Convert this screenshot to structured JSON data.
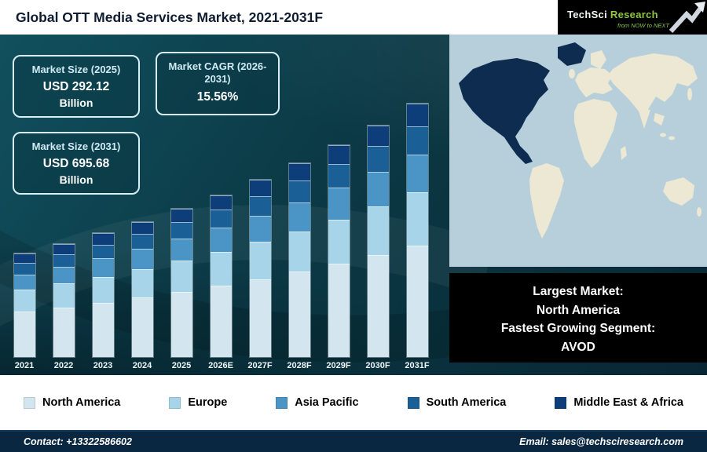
{
  "header": {
    "title": "Global OTT Media Services Market, 2021-2031F",
    "logo": {
      "brand_1": "TechSci",
      "brand_2": "Research",
      "tagline": "from NOW to NEXT"
    }
  },
  "info_boxes": [
    {
      "label": "Market Size (2025)",
      "value": "USD 292.12",
      "unit": "Billion"
    },
    {
      "label": "Market CAGR (2026-2031)",
      "value": "15.56%",
      "unit": ""
    },
    {
      "label": "Market Size (2031)",
      "value": "USD 695.68",
      "unit": "Billion"
    }
  ],
  "map_panel": {
    "highlighted_region": "North America",
    "sea_color": "#b7cedb",
    "land_color": "#ece8d3",
    "highlight_color": "#0d2c50"
  },
  "market_box": {
    "lines": [
      "Largest Market:",
      "North America",
      "Fastest Growing Segment:",
      "AVOD"
    ]
  },
  "legend": [
    {
      "label": "North America",
      "color": "#d3e6f0"
    },
    {
      "label": "Europe",
      "color": "#a8d4ea"
    },
    {
      "label": "Asia Pacific",
      "color": "#4b94c6"
    },
    {
      "label": "South America",
      "color": "#1b5f97"
    },
    {
      "label": "Middle East & Africa",
      "color": "#0d3e7a"
    }
  ],
  "footer": {
    "contact": "Contact: +13322586602",
    "email": "Email: sales@techsciresearch.com"
  },
  "chart_data": {
    "type": "bar",
    "stacked": true,
    "title": "Global OTT Media Services Market, 2021-2031F",
    "unit": "USD Billion",
    "categories": [
      "2021",
      "2022",
      "2023",
      "2024",
      "2025",
      "2026E",
      "2027F",
      "2028F",
      "2029F",
      "2030F",
      "2031F"
    ],
    "series": [
      {
        "name": "North America",
        "color": "#d3e6f0",
        "values": [
          72.1,
          83.3,
          96.3,
          111.2,
          128.5,
          148.5,
          171.6,
          198.4,
          229.2,
          264.9,
          306.1
        ]
      },
      {
        "name": "Europe",
        "color": "#a8d4ea",
        "values": [
          34.4,
          39.8,
          45.9,
          53.1,
          61.3,
          70.9,
          81.9,
          94.7,
          109.4,
          126.4,
          146.1
        ]
      },
      {
        "name": "Asia Pacific",
        "color": "#4b94c6",
        "values": [
          24.6,
          28.4,
          32.8,
          37.9,
          43.8,
          50.6,
          58.5,
          67.6,
          78.1,
          90.3,
          104.4
        ]
      },
      {
        "name": "South America",
        "color": "#1b5f97",
        "values": [
          18.0,
          20.8,
          24.1,
          27.8,
          32.1,
          37.1,
          42.9,
          49.6,
          57.3,
          66.2,
          76.5
        ]
      },
      {
        "name": "Middle East & Africa",
        "color": "#0d3e7a",
        "values": [
          14.8,
          17.0,
          19.7,
          22.8,
          26.3,
          30.4,
          35.1,
          40.6,
          46.9,
          54.2,
          62.6
        ]
      }
    ],
    "totals": [
      163.9,
      189.3,
      218.8,
      252.8,
      292.12,
      337.5,
      390.0,
      450.9,
      520.9,
      602.0,
      695.68
    ],
    "ylim": [
      0,
      700
    ],
    "grid": false,
    "legend_position": "bottom",
    "notes": "Printed figures: 2025 total USD 292.12B, 2031 total USD 695.68B, CAGR 15.56% (2026-2031). Other yearly totals and regional segment splits estimated from bar proportions."
  }
}
